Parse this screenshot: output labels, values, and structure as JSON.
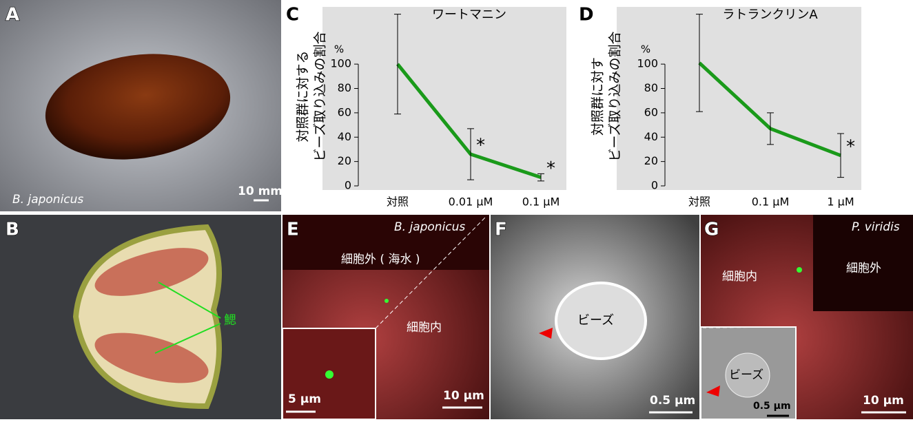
{
  "panels": {
    "A": {
      "label": "A",
      "species": "B. japonicus",
      "scale": "10 mm"
    },
    "B": {
      "label": "B",
      "gill": "鰓"
    },
    "E": {
      "label": "E",
      "species": "B. japonicus",
      "outside": "細胞外 ( 海水 )",
      "inside": "細胞内",
      "inset_scale": "5 µm",
      "scale": "10 µm"
    },
    "F": {
      "label": "F",
      "bead": "ビーズ",
      "scale": "0.5 µm"
    },
    "G": {
      "label": "G",
      "species": "P. viridis",
      "inside": "細胞内",
      "outside": "細胞外",
      "bead": "ビーズ",
      "inset_scale": "0.5 µm",
      "scale": "10 µm"
    }
  },
  "chart_data": [
    {
      "type": "line",
      "panel": "C",
      "title": "ワートマニン",
      "ylabel": [
        "対照群に対する",
        "ビーズ取り込みの割合"
      ],
      "yunit": "%",
      "categories": [
        "対照",
        "0.01 µM",
        "0.1 µM"
      ],
      "values": [
        100,
        26,
        7
      ],
      "errors": [
        41,
        21,
        3
      ],
      "significance": [
        null,
        "*",
        "*"
      ],
      "color": "#1a9a1a",
      "ylim": [
        0,
        147
      ],
      "yticks": [
        0,
        20,
        40,
        60,
        80,
        100
      ]
    },
    {
      "type": "line",
      "panel": "D",
      "title": "ラトランクリンA",
      "ylabel": [
        "対照群に対す",
        "ビーズ取り込みの割合"
      ],
      "yunit": "%",
      "categories": [
        "対照",
        "0.1 µM",
        "1 µM"
      ],
      "values": [
        101,
        47,
        25
      ],
      "errors": [
        40,
        13,
        18
      ],
      "significance": [
        null,
        null,
        "*"
      ],
      "color": "#1a9a1a",
      "ylim": [
        0,
        147
      ],
      "yticks": [
        0,
        20,
        40,
        60,
        80,
        100
      ]
    }
  ]
}
